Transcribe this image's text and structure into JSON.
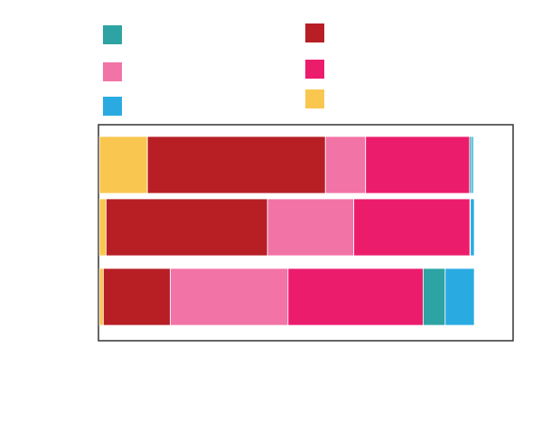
{
  "chart_data": {
    "type": "bar",
    "orientation": "horizontal",
    "stacked": true,
    "title": "",
    "xlabel": "",
    "ylabel": "",
    "xlim": [
      0,
      100
    ],
    "grid": false,
    "legend_placement": "top",
    "categories": [
      "",
      "",
      ""
    ],
    "series": [
      {
        "color": "#f9c74f",
        "values": [
          12.2,
          1.7,
          1.0
        ]
      },
      {
        "color": "#b71f25",
        "values": [
          45.2,
          41.0,
          17.0
        ]
      },
      {
        "color": "#f273a6",
        "values": [
          10.2,
          21.9,
          29.9
        ]
      },
      {
        "color": "#ec1c6d",
        "values": [
          26.4,
          29.5,
          34.3
        ]
      },
      {
        "color": "#2ea3a3",
        "values": [
          0.5,
          0.1,
          5.6
        ]
      },
      {
        "color": "#29abe2",
        "values": [
          0.5,
          1.0,
          7.4
        ]
      }
    ],
    "legend_order": [
      4,
      2,
      5,
      1,
      3,
      0
    ]
  }
}
